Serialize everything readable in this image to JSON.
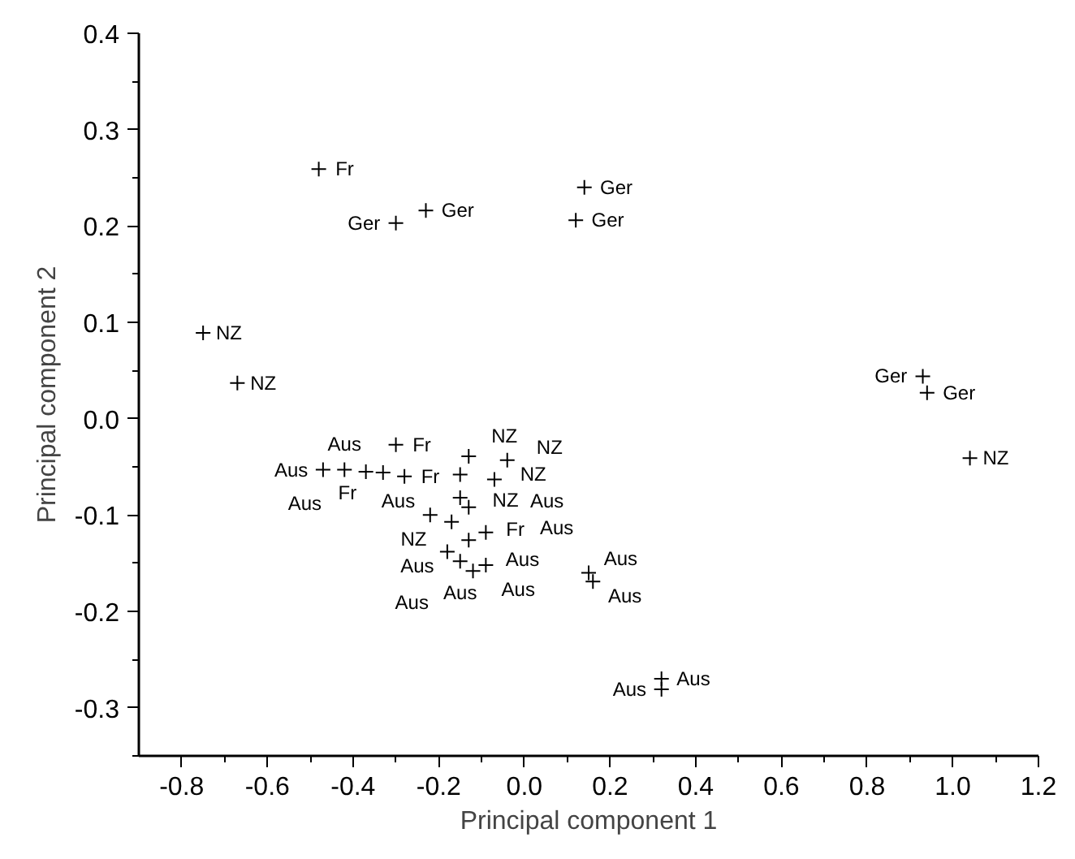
{
  "chart_data": {
    "type": "scatter",
    "xlabel": "Principal component 1",
    "ylabel": "Principal component 2",
    "marker": "cross",
    "grid": false,
    "xlim": [
      -0.9,
      1.2
    ],
    "xticks": [
      {
        "value": -0.8,
        "label": "-0.8"
      },
      {
        "value": -0.6,
        "label": "-0.6"
      },
      {
        "value": -0.4,
        "label": "-0.4"
      },
      {
        "value": -0.2,
        "label": "-0.2"
      },
      {
        "value": 0,
        "label": "0.0"
      },
      {
        "value": 0.2,
        "label": "0.2"
      },
      {
        "value": 0.4,
        "label": "0.4"
      },
      {
        "value": 0.6,
        "label": "0.6"
      },
      {
        "value": 0.8,
        "label": "0.8"
      },
      {
        "value": 1.0,
        "label": "1.0"
      },
      {
        "value": 1.2,
        "label": "1.2"
      }
    ],
    "ylim": [
      -0.35,
      0.4
    ],
    "yticks": [
      {
        "value": -0.3,
        "label": "-0.3"
      },
      {
        "value": -0.2,
        "label": "-0.2"
      },
      {
        "value": -0.1,
        "label": "-0.1"
      },
      {
        "value": 0,
        "label": "0.0"
      },
      {
        "value": 0.1,
        "label": "0.1"
      },
      {
        "value": 0.2,
        "label": "0.2"
      },
      {
        "value": 0.3,
        "label": "0.3"
      },
      {
        "value": 0.4,
        "label": "0.4"
      }
    ],
    "series": [
      {
        "name": "Fr",
        "color": "#000000",
        "x": [
          -0.48,
          -0.3,
          -0.33,
          -0.28,
          -0.15
        ],
        "values": [
          0.259,
          -0.027,
          -0.056,
          -0.06,
          -0.082
        ]
      },
      {
        "name": "Ger",
        "color": "#000000",
        "x": [
          -0.3,
          -0.23,
          0.14,
          0.12,
          0.93,
          0.94
        ],
        "values": [
          0.203,
          0.216,
          0.24,
          0.206,
          0.044,
          0.027
        ]
      },
      {
        "name": "NZ",
        "color": "#000000",
        "x": [
          -0.75,
          -0.67,
          1.04,
          -0.13,
          -0.04,
          -0.15,
          -0.07,
          -0.13
        ],
        "values": [
          0.089,
          0.037,
          -0.041,
          -0.039,
          -0.043,
          -0.058,
          -0.063,
          -0.092
        ]
      },
      {
        "name": "Aus",
        "color": "#000000",
        "x": [
          -0.47,
          -0.42,
          -0.37,
          -0.22,
          -0.17,
          -0.09,
          -0.13,
          -0.18,
          -0.15,
          -0.09,
          -0.12,
          0.15,
          0.16,
          0.32,
          0.32
        ],
        "values": [
          -0.053,
          -0.053,
          -0.055,
          -0.1,
          -0.107,
          -0.118,
          -0.126,
          -0.138,
          -0.148,
          -0.152,
          -0.158,
          -0.16,
          -0.169,
          -0.27,
          -0.281
        ]
      }
    ]
  }
}
